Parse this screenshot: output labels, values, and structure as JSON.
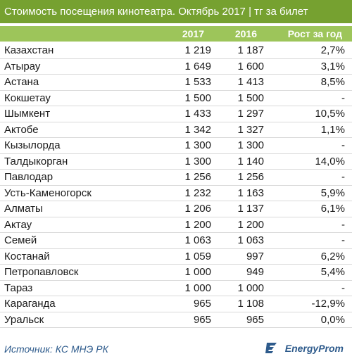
{
  "title": "Стоимость посещения кинотеатра. Октябрь 2017 | тг за билет",
  "columns": {
    "year2017": "2017",
    "year2016": "2016",
    "growth": "Рост за год"
  },
  "source": "Источник: КС МНЭ РК",
  "logo_text": "EnergyProm",
  "colors": {
    "title_bg": "#76a130",
    "header_bg": "#9dc55a",
    "source_text": "#2e5b8c"
  },
  "chart_data": {
    "type": "table",
    "columns": [
      "",
      "2017",
      "2016",
      "Рост за год"
    ],
    "rows": [
      {
        "city": "Казахстан",
        "v2017": "1 219",
        "v2016": "1 187",
        "growth": "2,7%"
      },
      {
        "city": "Атырау",
        "v2017": "1 649",
        "v2016": "1 600",
        "growth": "3,1%"
      },
      {
        "city": "Астана",
        "v2017": "1 533",
        "v2016": "1 413",
        "growth": "8,5%"
      },
      {
        "city": "Кокшетау",
        "v2017": "1 500",
        "v2016": "1 500",
        "growth": "-"
      },
      {
        "city": "Шымкент",
        "v2017": "1 433",
        "v2016": "1 297",
        "growth": "10,5%"
      },
      {
        "city": "Актобе",
        "v2017": "1 342",
        "v2016": "1 327",
        "growth": "1,1%"
      },
      {
        "city": "Кызылорда",
        "v2017": "1 300",
        "v2016": "1 300",
        "growth": "-"
      },
      {
        "city": "Талдыкорган",
        "v2017": "1 300",
        "v2016": "1 140",
        "growth": "14,0%"
      },
      {
        "city": "Павлодар",
        "v2017": "1 256",
        "v2016": "1 256",
        "growth": "-"
      },
      {
        "city": "Усть-Каменогорск",
        "v2017": "1 232",
        "v2016": "1 163",
        "growth": "5,9%"
      },
      {
        "city": "Алматы",
        "v2017": "1 206",
        "v2016": "1 137",
        "growth": "6,1%"
      },
      {
        "city": "Актау",
        "v2017": "1 200",
        "v2016": "1 200",
        "growth": "-"
      },
      {
        "city": "Семей",
        "v2017": "1 063",
        "v2016": "1 063",
        "growth": "-"
      },
      {
        "city": "Костанай",
        "v2017": "1 059",
        "v2016": "997",
        "growth": "6,2%"
      },
      {
        "city": "Петропавловск",
        "v2017": "1 000",
        "v2016": "949",
        "growth": "5,4%"
      },
      {
        "city": "Тараз",
        "v2017": "1 000",
        "v2016": "1 000",
        "growth": "-"
      },
      {
        "city": "Караганда",
        "v2017": "965",
        "v2016": "1 108",
        "growth": "-12,9%"
      },
      {
        "city": "Уральск",
        "v2017": "965",
        "v2016": "965",
        "growth": "0,0%"
      }
    ]
  }
}
